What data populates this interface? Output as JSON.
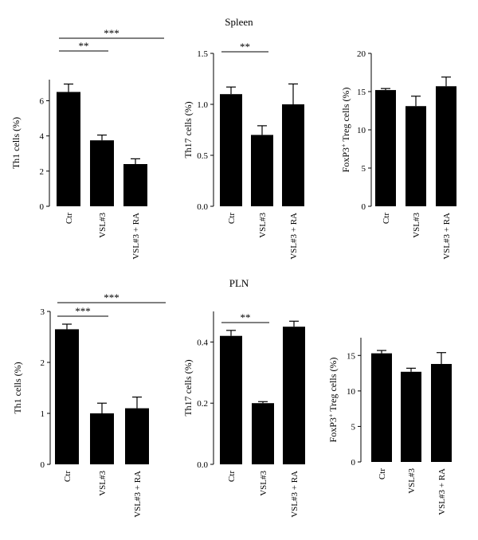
{
  "sections": {
    "top_title": "Spleen",
    "bottom_title": "PLN"
  },
  "bar_color": "#000000",
  "chart_data": [
    {
      "type": "bar",
      "panel": "spleen-th1",
      "categories": [
        "Ctr",
        "VSL#3",
        "VSL#3 + RA"
      ],
      "values": [
        6.5,
        3.75,
        2.4
      ],
      "errors": [
        0.45,
        0.3,
        0.3
      ],
      "ylabel": "Th1 cells (%)",
      "ylim": [
        0,
        7.2
      ],
      "yticks": [
        0,
        2,
        4,
        6
      ],
      "tick_labels": [
        "0",
        "2",
        "4",
        "6"
      ],
      "significance": [
        {
          "from": 0,
          "to": 1,
          "label": "**"
        },
        {
          "from": 0,
          "to": 3,
          "label": "***"
        }
      ]
    },
    {
      "type": "bar",
      "panel": "spleen-th17",
      "categories": [
        "Ctr",
        "VSL#3",
        "VSL#3 + RA"
      ],
      "values": [
        1.1,
        0.7,
        1.0
      ],
      "errors": [
        0.07,
        0.09,
        0.2
      ],
      "ylabel": "Th17 cells (%)",
      "ylim": [
        0,
        1.5
      ],
      "yticks": [
        0,
        0.5,
        1.0,
        1.5
      ],
      "tick_labels": [
        "0.0",
        "0.5",
        "1.0",
        "1.5"
      ],
      "significance": [
        {
          "from": 0,
          "to": 1,
          "label": "**"
        }
      ]
    },
    {
      "type": "bar",
      "panel": "spleen-treg",
      "categories": [
        "Ctr",
        "VSL#3",
        "VSL#3 + RA"
      ],
      "values": [
        15.2,
        13.1,
        15.7
      ],
      "errors": [
        0.2,
        1.3,
        1.2
      ],
      "ylabel_main": "FoxP3",
      "ylabel_sup": "+",
      "ylabel_rest": " Treg cells (%)",
      "ylim": [
        0,
        20
      ],
      "yticks": [
        0,
        5,
        10,
        15,
        20
      ],
      "tick_labels": [
        "0",
        "5",
        "10",
        "15",
        "20"
      ],
      "significance": []
    },
    {
      "type": "bar",
      "panel": "pln-th1",
      "categories": [
        "Ctr",
        "VSL#3",
        "VSL#3 + RA"
      ],
      "values": [
        2.65,
        1.0,
        1.1
      ],
      "errors": [
        0.1,
        0.2,
        0.22
      ],
      "ylabel": "Th1 cells (%)",
      "ylim": [
        0,
        3
      ],
      "yticks": [
        0,
        1,
        2,
        3
      ],
      "tick_labels": [
        "0",
        "1",
        "2",
        "3"
      ],
      "significance": [
        {
          "from": 0,
          "to": 1,
          "label": "***"
        },
        {
          "from": 0,
          "to": 3,
          "label": "***"
        }
      ]
    },
    {
      "type": "bar",
      "panel": "pln-th17",
      "categories": [
        "Ctr",
        "VSL#3",
        "VSL#3 + RA"
      ],
      "values": [
        0.42,
        0.2,
        0.45
      ],
      "errors": [
        0.018,
        0.005,
        0.018
      ],
      "ylabel": "Th17 cells (%)",
      "ylim": [
        0,
        0.5
      ],
      "yticks": [
        0,
        0.2,
        0.4
      ],
      "tick_labels": [
        "0.0",
        "0.2",
        "0.4"
      ],
      "significance": [
        {
          "from": 0,
          "to": 1,
          "label": "**"
        }
      ]
    },
    {
      "type": "bar",
      "panel": "pln-treg",
      "categories": [
        "Ctr",
        "VSL#3",
        "VSL#3 + RA"
      ],
      "values": [
        15.3,
        12.7,
        13.8
      ],
      "errors": [
        0.4,
        0.5,
        1.6
      ],
      "ylabel_main": "FoxP3",
      "ylabel_sup": "+",
      "ylabel_rest": " Treg cells (%)",
      "ylim": [
        0,
        17.5
      ],
      "yticks": [
        0,
        5,
        10,
        15
      ],
      "tick_labels": [
        "0",
        "5",
        "10",
        "15"
      ],
      "significance": []
    }
  ]
}
